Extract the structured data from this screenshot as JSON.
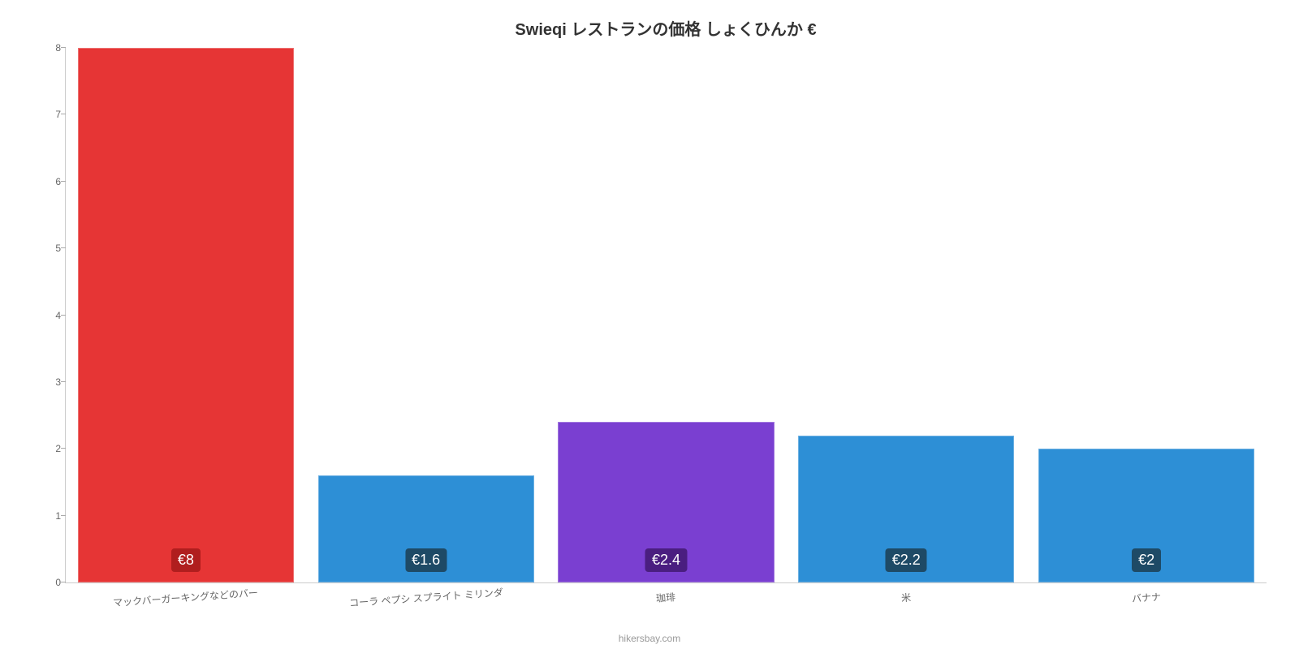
{
  "chart": {
    "type": "bar",
    "title": "Swieqi レストランの価格 しょくひんか €",
    "title_fontsize": 20,
    "title_color": "#333333",
    "background_color": "#ffffff",
    "axis_color": "#cccccc",
    "tick_color": "#aaaaaa",
    "label_color": "#666666",
    "ylim_min": 0,
    "ylim_max": 8,
    "ytick_step": 1,
    "yticks": [
      0,
      1,
      2,
      3,
      4,
      5,
      6,
      7,
      8
    ],
    "bar_width_pct": 90,
    "bar_label_fontsize": 18,
    "bar_label_text_color": "#ffffff",
    "bar_label_radius": 4,
    "x_label_fontsize": 12,
    "x_label_rotation_deg": -4,
    "categories": [
      "マックバーガーキングなどのバー",
      "コーラ ペプシ スプライト ミリンダ",
      "珈琲",
      "米",
      "バナナ"
    ],
    "values": [
      8,
      1.6,
      2.4,
      2.2,
      2
    ],
    "display_values": [
      "€8",
      "€1.6",
      "€2.4",
      "€2.2",
      "€2"
    ],
    "bar_colors": [
      "#e63535",
      "#2d8fd6",
      "#7a3fd1",
      "#2d8fd6",
      "#2d8fd6"
    ],
    "bar_label_bg": [
      "#b01e1e",
      "#1e4a66",
      "#4a1e80",
      "#1e4a66",
      "#1e4a66"
    ],
    "attribution": "hikersbay.com",
    "attribution_color": "#999999"
  }
}
